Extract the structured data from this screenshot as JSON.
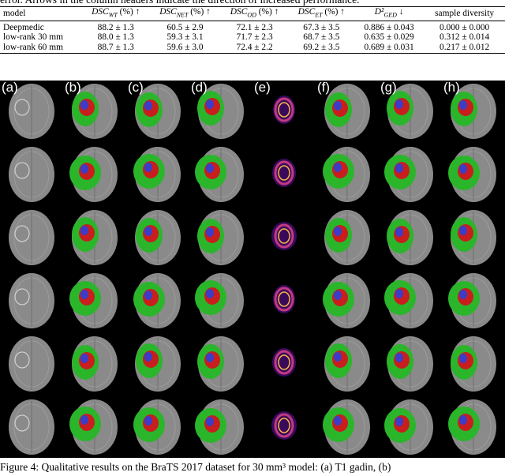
{
  "caption_top": "error. Arrows in the column headers indicate the direction of increased performance.",
  "table": {
    "headers": [
      {
        "text": "model"
      },
      {
        "base": "DSC",
        "sub": "WT",
        "suffix": " (%) ↑"
      },
      {
        "base": "DSC",
        "sub": "NET",
        "suffix": " (%) ↑"
      },
      {
        "base": "DSC",
        "sub": "OD",
        "suffix": " (%) ↑"
      },
      {
        "base": "DSC",
        "sub": "ET",
        "suffix": " (%) ↑"
      },
      {
        "base": "D²",
        "sub": "GED",
        "suffix": " ↓"
      },
      {
        "text": "sample diversity"
      }
    ],
    "rows": [
      [
        "Deepmedic",
        "88.2 ± 1.3",
        "60.5 ± 2.9",
        "72.1 ± 2.3",
        "67.3 ± 3.5",
        "0.886 ± 0.043",
        "0.000 ± 0.000"
      ],
      [
        "low-rank 30 mm",
        "88.0 ± 1.3",
        "59.3 ± 3.1",
        "71.7 ± 2.3",
        "68.7 ± 3.5",
        "0.635 ± 0.029",
        "0.312 ± 0.014"
      ],
      [
        "low-rank 60 mm",
        "88.7 ± 1.3",
        "59.6 ± 3.0",
        "72.4 ± 2.2",
        "69.2 ± 3.5",
        "0.689 ± 0.031",
        "0.217 ± 0.012"
      ]
    ]
  },
  "figure": {
    "column_labels": [
      "(a)",
      "(b)",
      "(c)",
      "(d)",
      "(e)",
      "(f)",
      "(g)",
      "(h)"
    ],
    "colors": {
      "background": "#000000",
      "brain": "#8a8a8a",
      "edema": "#2bb52b",
      "enhancing": "#c81e1e",
      "necrotic": "#3c3cc8",
      "heatmap_low": "#3a0a5a",
      "heatmap_mid": "#c03a83",
      "heatmap_high": "#f7b54a"
    }
  },
  "caption_bottom": "Figure 4: Qualitative results on the BraTS 2017 dataset for 30 mm³ model: (a) T1 gadin, (b)"
}
